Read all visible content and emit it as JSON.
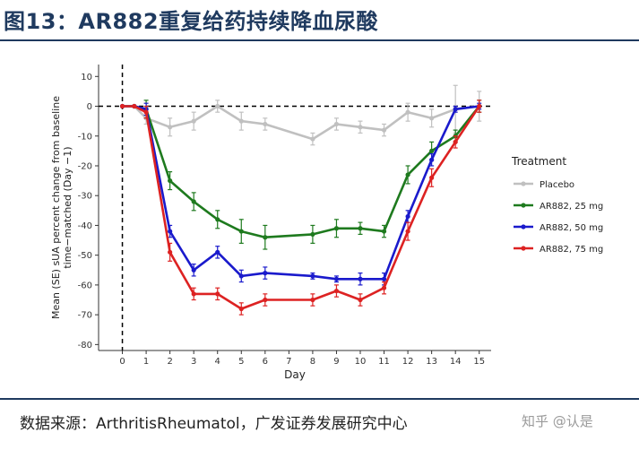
{
  "figure": {
    "title": "图13：AR882重复给药持续降血尿酸",
    "source": "数据来源：ArthritisRheumatol，广发证券发展研究中心",
    "watermark": "知乎 @认是"
  },
  "chart_data": {
    "type": "line",
    "ylabel": "Mean (SE) sUA percent change from baseline time−matched (Day −1)",
    "xlabel": "Day",
    "xlim": [
      -1,
      15.5
    ],
    "ylim": [
      -82,
      14
    ],
    "xticks": [
      0,
      1,
      2,
      3,
      4,
      5,
      6,
      7,
      8,
      9,
      10,
      11,
      12,
      13,
      14,
      15
    ],
    "yticks": [
      10,
      0,
      -10,
      -20,
      -30,
      -40,
      -50,
      -60,
      -70,
      -80
    ],
    "reference_lines": {
      "horizontal_y": 0,
      "vertical_x": 0,
      "style": "dashed"
    },
    "grid": false,
    "legend": {
      "title": "Treatment",
      "position": "right"
    },
    "series": [
      {
        "name": "Placebo",
        "color": "#c0c0c0",
        "x": [
          0,
          0.5,
          1,
          2,
          3,
          4,
          5,
          6,
          8,
          9,
          10,
          11,
          12,
          13,
          14,
          15
        ],
        "y": [
          0,
          0,
          -4,
          -7,
          -5,
          0,
          -5,
          -6,
          -11,
          -6,
          -7,
          -8,
          -2,
          -4,
          -1,
          0
        ],
        "err": [
          0,
          0,
          2,
          3,
          3,
          2,
          3,
          2,
          2,
          2,
          2,
          2,
          3,
          3,
          8,
          5
        ]
      },
      {
        "name": "AR882, 25 mg",
        "color": "#1e7a1e",
        "x": [
          0,
          0.5,
          1,
          2,
          3,
          4,
          5,
          6,
          8,
          9,
          10,
          11,
          12,
          13,
          14,
          15
        ],
        "y": [
          0,
          0,
          -1,
          -25,
          -32,
          -38,
          -42,
          -44,
          -43,
          -41,
          -41,
          -42,
          -23,
          -15,
          -10,
          0
        ],
        "err": [
          0,
          0,
          3,
          3,
          3,
          3,
          4,
          4,
          3,
          3,
          2,
          2,
          3,
          3,
          2,
          2
        ]
      },
      {
        "name": "AR882, 50 mg",
        "color": "#1a1acc",
        "x": [
          0,
          0.5,
          1,
          2,
          3,
          4,
          5,
          6,
          8,
          9,
          10,
          11,
          12,
          13,
          14,
          15
        ],
        "y": [
          0,
          0,
          -1,
          -42,
          -55,
          -49,
          -57,
          -56,
          -57,
          -58,
          -58,
          -58,
          -37,
          -18,
          -1,
          0
        ],
        "err": [
          0,
          0,
          2,
          2,
          2,
          2,
          2,
          2,
          1,
          1,
          2,
          2,
          2,
          2,
          1,
          1
        ]
      },
      {
        "name": "AR882, 75 mg",
        "color": "#dd2222",
        "x": [
          0,
          0.5,
          1,
          2,
          3,
          4,
          5,
          6,
          8,
          9,
          10,
          11,
          12,
          13,
          14,
          15
        ],
        "y": [
          0,
          0,
          -2,
          -49,
          -63,
          -63,
          -68,
          -65,
          -65,
          -62,
          -65,
          -61,
          -42,
          -24,
          -12,
          0
        ],
        "err": [
          0,
          0,
          2,
          3,
          2,
          2,
          2,
          2,
          2,
          2,
          2,
          2,
          3,
          3,
          2,
          2
        ]
      }
    ]
  }
}
